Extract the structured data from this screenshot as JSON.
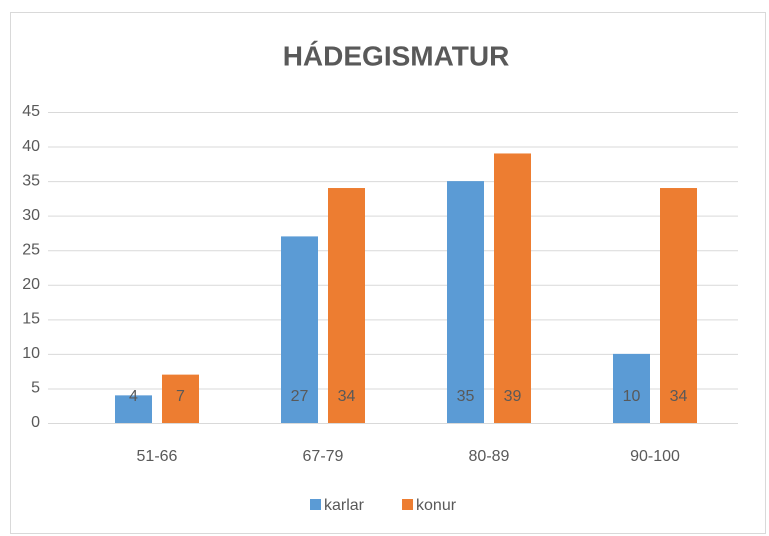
{
  "chart_data": {
    "type": "bar",
    "title": "HÁDEGISMATUR",
    "categories": [
      "51-66",
      "67-79",
      "80-89",
      "90-100"
    ],
    "series": [
      {
        "name": "karlar",
        "color": "#5b9bd5",
        "values": [
          4,
          27,
          35,
          10
        ]
      },
      {
        "name": "konur",
        "color": "#ed7d31",
        "values": [
          7,
          34,
          39,
          34
        ]
      }
    ],
    "ylim": [
      0,
      45
    ],
    "yticks": [
      0,
      5,
      10,
      15,
      20,
      25,
      30,
      35,
      40,
      45
    ],
    "grid": true,
    "legend": "bottom",
    "data_labels": true
  }
}
